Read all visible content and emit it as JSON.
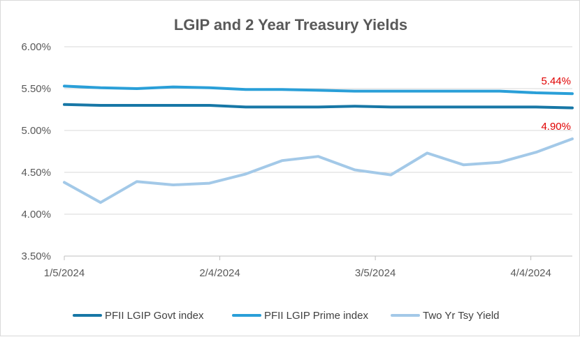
{
  "chart_data": {
    "type": "line",
    "title": "LGIP and 2 Year Treasury Yields",
    "xlabel": "",
    "ylabel": "",
    "ylim": [
      3.5,
      6.0
    ],
    "y_ticks": [
      "3.50%",
      "4.00%",
      "4.50%",
      "5.00%",
      "5.50%",
      "6.00%"
    ],
    "y_tick_values": [
      3.5,
      4.0,
      4.5,
      5.0,
      5.5,
      6.0
    ],
    "x_ticks": [
      "1/5/2024",
      "2/4/2024",
      "3/5/2024",
      "4/4/2024"
    ],
    "x_tick_values": [
      "2024-01-05",
      "2024-02-04",
      "2024-03-05",
      "2024-04-04"
    ],
    "x_range": [
      "2024-01-05",
      "2024-04-12"
    ],
    "grid": "horizontal",
    "legend_position": "bottom",
    "x": [
      "2024-01-05",
      "2024-01-12",
      "2024-01-19",
      "2024-01-26",
      "2024-02-02",
      "2024-02-09",
      "2024-02-16",
      "2024-02-23",
      "2024-03-01",
      "2024-03-08",
      "2024-03-15",
      "2024-03-22",
      "2024-03-29",
      "2024-04-05",
      "2024-04-12"
    ],
    "series": [
      {
        "name": "PFII LGIP Govt index",
        "color": "#1777a6",
        "values": [
          5.31,
          5.3,
          5.3,
          5.3,
          5.3,
          5.28,
          5.28,
          5.28,
          5.29,
          5.28,
          5.28,
          5.28,
          5.28,
          5.28,
          5.27
        ]
      },
      {
        "name": "PFII LGIP Prime index",
        "color": "#2a9fd8",
        "values": [
          5.53,
          5.51,
          5.5,
          5.52,
          5.51,
          5.49,
          5.49,
          5.48,
          5.47,
          5.47,
          5.47,
          5.47,
          5.47,
          5.45,
          5.44
        ]
      },
      {
        "name": "Two Yr Tsy Yield",
        "color": "#a3c9e8",
        "values": [
          4.38,
          4.14,
          4.39,
          4.35,
          4.37,
          4.48,
          4.64,
          4.69,
          4.53,
          4.47,
          4.73,
          4.59,
          4.62,
          4.74,
          4.9
        ]
      }
    ],
    "annotations": [
      {
        "text": "5.44%",
        "series": 1,
        "point": 14,
        "color": "#e00000"
      },
      {
        "text": "4.90%",
        "series": 2,
        "point": 14,
        "color": "#e00000"
      }
    ]
  }
}
